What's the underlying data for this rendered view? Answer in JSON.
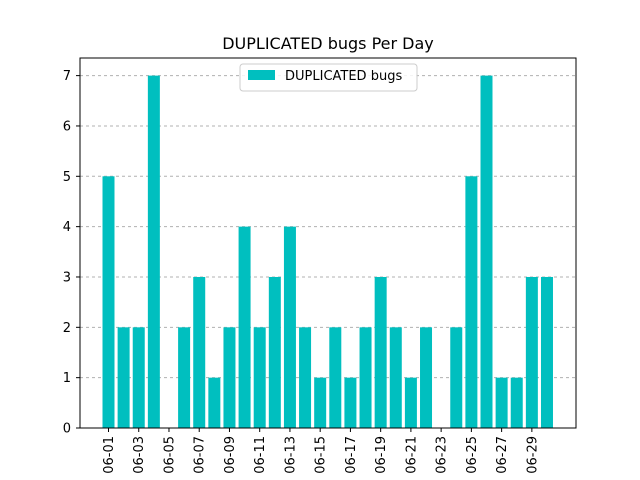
{
  "chart_data": {
    "type": "bar",
    "title": "DUPLICATED bugs Per Day",
    "xlabel": "",
    "ylabel": "",
    "categories": [
      "06-01",
      "06-02",
      "06-03",
      "06-04",
      "06-05",
      "06-06",
      "06-07",
      "06-08",
      "06-09",
      "06-10",
      "06-11",
      "06-12",
      "06-13",
      "06-14",
      "06-15",
      "06-16",
      "06-17",
      "06-18",
      "06-19",
      "06-20",
      "06-21",
      "06-22",
      "06-23",
      "06-24",
      "06-25",
      "06-26",
      "06-27",
      "06-28",
      "06-29",
      "06-30"
    ],
    "series": [
      {
        "name": "DUPLICATED bugs",
        "color": "#00bfbf",
        "values": [
          5,
          2,
          2,
          7,
          0,
          2,
          3,
          1,
          2,
          4,
          2,
          3,
          4,
          2,
          1,
          2,
          1,
          2,
          3,
          2,
          1,
          2,
          0,
          2,
          5,
          7,
          1,
          1,
          3,
          3
        ]
      }
    ],
    "x_tick_labels": [
      "06-01",
      "06-03",
      "06-05",
      "06-07",
      "06-09",
      "06-11",
      "06-13",
      "06-15",
      "06-17",
      "06-19",
      "06-21",
      "06-23",
      "06-25",
      "06-27",
      "06-29"
    ],
    "y_ticks": [
      0,
      1,
      2,
      3,
      4,
      5,
      6,
      7
    ],
    "ylim": [
      0,
      7.35
    ],
    "grid": "y-dashed",
    "legend_position": "top-center"
  }
}
